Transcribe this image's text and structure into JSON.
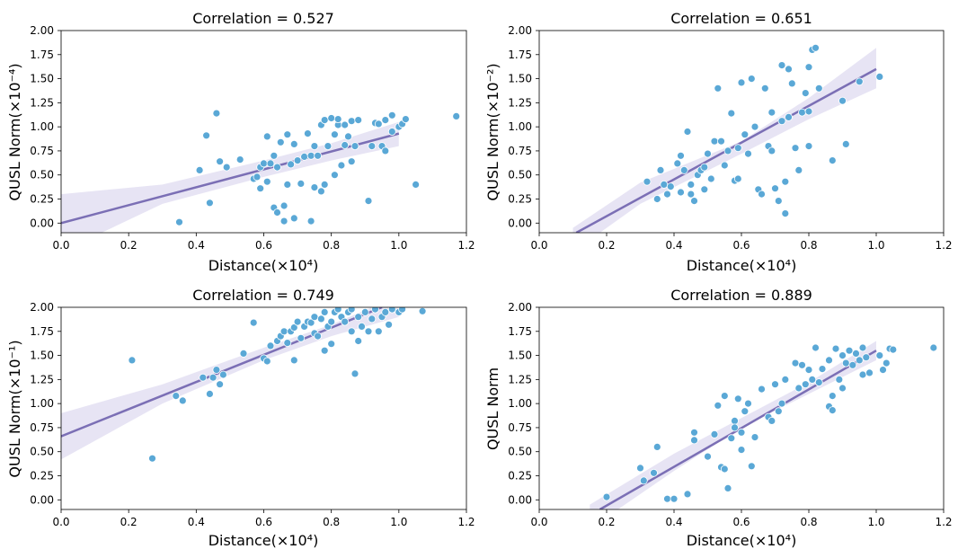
{
  "chart_data": [
    {
      "type": "scatter",
      "title": "Correlation = 0.527",
      "xlabel": "Distance(×10⁴)",
      "ylabel": "QUSL Norm(×10⁻⁴)",
      "xlim": [
        0,
        1.2
      ],
      "ylim": [
        -0.1,
        2.0
      ],
      "xticks": [
        "0.0",
        "0.2",
        "0.4",
        "0.6",
        "0.8",
        "1.0",
        "1.2"
      ],
      "yticks": [
        "0.00",
        "0.25",
        "0.50",
        "0.75",
        "1.00",
        "1.25",
        "1.50",
        "1.75",
        "2.00"
      ],
      "point_color": "#5aa8d6",
      "line_color": "#7b6fb5",
      "band_color": "#ddd8f0",
      "fit": {
        "x": [
          0.0,
          1.0
        ],
        "y": [
          0.0,
          0.93
        ]
      },
      "band": {
        "x": [
          0.0,
          0.3,
          0.6,
          0.8,
          1.0
        ],
        "lower": [
          -0.3,
          0.2,
          0.48,
          0.65,
          0.8
        ],
        "upper": [
          0.3,
          0.4,
          0.65,
          0.83,
          1.05
        ]
      },
      "points": [
        [
          0.35,
          0.01
        ],
        [
          0.41,
          0.55
        ],
        [
          0.43,
          0.91
        ],
        [
          0.44,
          0.21
        ],
        [
          0.46,
          1.14
        ],
        [
          0.47,
          0.64
        ],
        [
          0.49,
          0.58
        ],
        [
          0.53,
          0.66
        ],
        [
          0.57,
          0.46
        ],
        [
          0.58,
          0.48
        ],
        [
          0.59,
          0.36
        ],
        [
          0.59,
          0.58
        ],
        [
          0.6,
          0.62
        ],
        [
          0.61,
          0.43
        ],
        [
          0.61,
          0.9
        ],
        [
          0.62,
          0.62
        ],
        [
          0.63,
          0.16
        ],
        [
          0.63,
          0.7
        ],
        [
          0.64,
          0.11
        ],
        [
          0.64,
          0.58
        ],
        [
          0.65,
          0.84
        ],
        [
          0.66,
          0.02
        ],
        [
          0.66,
          0.18
        ],
        [
          0.67,
          0.4
        ],
        [
          0.67,
          0.92
        ],
        [
          0.68,
          0.61
        ],
        [
          0.69,
          0.05
        ],
        [
          0.69,
          0.82
        ],
        [
          0.7,
          0.65
        ],
        [
          0.71,
          0.41
        ],
        [
          0.72,
          0.69
        ],
        [
          0.73,
          0.93
        ],
        [
          0.74,
          0.02
        ],
        [
          0.74,
          0.7
        ],
        [
          0.75,
          0.37
        ],
        [
          0.75,
          0.8
        ],
        [
          0.76,
          0.7
        ],
        [
          0.77,
          0.33
        ],
        [
          0.77,
          1.02
        ],
        [
          0.78,
          0.4
        ],
        [
          0.78,
          1.07
        ],
        [
          0.79,
          0.8
        ],
        [
          0.8,
          1.09
        ],
        [
          0.81,
          0.5
        ],
        [
          0.81,
          0.92
        ],
        [
          0.82,
          1.02
        ],
        [
          0.82,
          1.08
        ],
        [
          0.83,
          0.6
        ],
        [
          0.84,
          0.81
        ],
        [
          0.84,
          1.02
        ],
        [
          0.85,
          0.9
        ],
        [
          0.86,
          0.64
        ],
        [
          0.86,
          1.06
        ],
        [
          0.87,
          0.8
        ],
        [
          0.88,
          1.07
        ],
        [
          0.91,
          0.23
        ],
        [
          0.92,
          0.8
        ],
        [
          0.93,
          1.04
        ],
        [
          0.94,
          1.03
        ],
        [
          0.95,
          0.8
        ],
        [
          0.96,
          0.75
        ],
        [
          0.96,
          1.07
        ],
        [
          0.98,
          0.95
        ],
        [
          0.98,
          1.12
        ],
        [
          1.0,
          1.0
        ],
        [
          1.01,
          1.03
        ],
        [
          1.02,
          1.08
        ],
        [
          1.05,
          0.4
        ],
        [
          1.17,
          1.11
        ]
      ]
    },
    {
      "type": "scatter",
      "title": "Correlation = 0.651",
      "xlabel": "Distance(×10⁴)",
      "ylabel": "QUSL Norm(×10⁻²)",
      "xlim": [
        0,
        1.2
      ],
      "ylim": [
        -0.1,
        2.0
      ],
      "xticks": [
        "0.0",
        "0.2",
        "0.4",
        "0.6",
        "0.8",
        "1.0",
        "1.2"
      ],
      "yticks": [
        "0.00",
        "0.25",
        "0.50",
        "0.75",
        "1.00",
        "1.25",
        "1.50",
        "1.75",
        "2.00"
      ],
      "point_color": "#5aa8d6",
      "line_color": "#7b6fb5",
      "band_color": "#ddd8f0",
      "fit": {
        "x": [
          0.11,
          1.0
        ],
        "y": [
          -0.1,
          1.6
        ]
      },
      "band": {
        "x": [
          0.1,
          0.3,
          0.6,
          0.8,
          1.0
        ],
        "lower": [
          -0.3,
          0.2,
          0.72,
          1.08,
          1.4
        ],
        "upper": [
          -0.05,
          0.42,
          0.85,
          1.3,
          1.82
        ]
      },
      "points": [
        [
          0.32,
          0.43
        ],
        [
          0.35,
          0.25
        ],
        [
          0.36,
          0.55
        ],
        [
          0.37,
          0.4
        ],
        [
          0.38,
          0.3
        ],
        [
          0.39,
          0.38
        ],
        [
          0.41,
          0.62
        ],
        [
          0.42,
          0.7
        ],
        [
          0.42,
          0.32
        ],
        [
          0.43,
          0.55
        ],
        [
          0.44,
          0.95
        ],
        [
          0.45,
          0.3
        ],
        [
          0.45,
          0.4
        ],
        [
          0.46,
          0.23
        ],
        [
          0.47,
          0.5
        ],
        [
          0.48,
          0.55
        ],
        [
          0.49,
          0.58
        ],
        [
          0.49,
          0.35
        ],
        [
          0.5,
          0.72
        ],
        [
          0.51,
          0.46
        ],
        [
          0.52,
          0.85
        ],
        [
          0.53,
          1.4
        ],
        [
          0.54,
          0.85
        ],
        [
          0.55,
          0.6
        ],
        [
          0.56,
          0.75
        ],
        [
          0.57,
          1.14
        ],
        [
          0.58,
          0.44
        ],
        [
          0.59,
          0.46
        ],
        [
          0.59,
          0.78
        ],
        [
          0.6,
          1.46
        ],
        [
          0.61,
          0.92
        ],
        [
          0.62,
          0.72
        ],
        [
          0.63,
          1.5
        ],
        [
          0.64,
          1.0
        ],
        [
          0.65,
          0.35
        ],
        [
          0.66,
          0.3
        ],
        [
          0.67,
          1.4
        ],
        [
          0.68,
          0.8
        ],
        [
          0.69,
          0.75
        ],
        [
          0.69,
          1.15
        ],
        [
          0.7,
          0.36
        ],
        [
          0.71,
          0.23
        ],
        [
          0.72,
          1.06
        ],
        [
          0.72,
          1.64
        ],
        [
          0.73,
          0.1
        ],
        [
          0.73,
          0.43
        ],
        [
          0.74,
          1.1
        ],
        [
          0.74,
          1.6
        ],
        [
          0.75,
          1.45
        ],
        [
          0.76,
          0.78
        ],
        [
          0.77,
          0.55
        ],
        [
          0.78,
          1.15
        ],
        [
          0.79,
          1.35
        ],
        [
          0.8,
          0.8
        ],
        [
          0.8,
          1.16
        ],
        [
          0.8,
          1.62
        ],
        [
          0.81,
          1.8
        ],
        [
          0.82,
          1.82
        ],
        [
          0.83,
          1.4
        ],
        [
          0.87,
          0.65
        ],
        [
          0.9,
          1.27
        ],
        [
          0.91,
          0.82
        ],
        [
          0.95,
          1.47
        ],
        [
          1.01,
          1.52
        ]
      ]
    },
    {
      "type": "scatter",
      "title": "Correlation = 0.749",
      "xlabel": "Distance(×10⁴)",
      "ylabel": "QUSL Norm(×10⁻¹)",
      "xlim": [
        0,
        1.2
      ],
      "ylim": [
        -0.1,
        2.0
      ],
      "xticks": [
        "0.0",
        "0.2",
        "0.4",
        "0.6",
        "0.8",
        "1.0",
        "1.2"
      ],
      "yticks": [
        "0.00",
        "0.25",
        "0.50",
        "0.75",
        "1.00",
        "1.25",
        "1.50",
        "1.75",
        "2.00"
      ],
      "point_color": "#5aa8d6",
      "line_color": "#7b6fb5",
      "band_color": "#ddd8f0",
      "fit": {
        "x": [
          0.0,
          0.95
        ],
        "y": [
          0.66,
          2.0
        ]
      },
      "band": {
        "x": [
          0.0,
          0.3,
          0.6,
          0.8,
          1.0
        ],
        "lower": [
          0.42,
          1.0,
          1.45,
          1.7,
          1.9
        ],
        "upper": [
          0.9,
          1.2,
          1.58,
          1.82,
          2.12
        ]
      },
      "points": [
        [
          0.21,
          1.45
        ],
        [
          0.27,
          0.43
        ],
        [
          0.34,
          1.08
        ],
        [
          0.36,
          1.03
        ],
        [
          0.42,
          1.27
        ],
        [
          0.44,
          1.1
        ],
        [
          0.45,
          1.27
        ],
        [
          0.46,
          1.35
        ],
        [
          0.47,
          1.2
        ],
        [
          0.48,
          1.3
        ],
        [
          0.54,
          1.52
        ],
        [
          0.57,
          1.84
        ],
        [
          0.6,
          1.47
        ],
        [
          0.61,
          1.44
        ],
        [
          0.62,
          1.6
        ],
        [
          0.64,
          1.65
        ],
        [
          0.65,
          1.7
        ],
        [
          0.66,
          1.75
        ],
        [
          0.67,
          1.63
        ],
        [
          0.68,
          1.75
        ],
        [
          0.69,
          1.45
        ],
        [
          0.69,
          1.79
        ],
        [
          0.7,
          1.85
        ],
        [
          0.71,
          1.68
        ],
        [
          0.72,
          1.8
        ],
        [
          0.73,
          1.85
        ],
        [
          0.74,
          1.84
        ],
        [
          0.75,
          1.73
        ],
        [
          0.75,
          1.9
        ],
        [
          0.76,
          1.7
        ],
        [
          0.77,
          1.88
        ],
        [
          0.78,
          1.55
        ],
        [
          0.78,
          1.95
        ],
        [
          0.79,
          1.8
        ],
        [
          0.8,
          1.62
        ],
        [
          0.8,
          1.85
        ],
        [
          0.81,
          1.95
        ],
        [
          0.82,
          1.98
        ],
        [
          0.83,
          1.9
        ],
        [
          0.84,
          1.85
        ],
        [
          0.85,
          1.95
        ],
        [
          0.86,
          1.75
        ],
        [
          0.86,
          1.98
        ],
        [
          0.87,
          1.31
        ],
        [
          0.88,
          1.65
        ],
        [
          0.88,
          1.9
        ],
        [
          0.89,
          1.8
        ],
        [
          0.9,
          1.95
        ],
        [
          0.91,
          1.75
        ],
        [
          0.92,
          1.88
        ],
        [
          0.93,
          1.98
        ],
        [
          0.94,
          1.75
        ],
        [
          0.95,
          1.9
        ],
        [
          0.96,
          1.95
        ],
        [
          0.97,
          1.82
        ],
        [
          0.98,
          1.98
        ],
        [
          1.0,
          1.95
        ],
        [
          1.01,
          1.98
        ],
        [
          1.07,
          1.96
        ]
      ]
    },
    {
      "type": "scatter",
      "title": "Correlation = 0.889",
      "xlabel": "Distance(×10⁴)",
      "ylabel": "QUSL Norm",
      "xlim": [
        0,
        1.2
      ],
      "ylim": [
        -0.1,
        2.0
      ],
      "xticks": [
        "0.0",
        "0.2",
        "0.4",
        "0.6",
        "0.8",
        "1.0",
        "1.2"
      ],
      "yticks": [
        "0.00",
        "0.25",
        "0.50",
        "0.75",
        "1.00",
        "1.25",
        "1.50",
        "1.75",
        "2.00"
      ],
      "point_color": "#5aa8d6",
      "line_color": "#7b6fb5",
      "band_color": "#ddd8f0",
      "fit": {
        "x": [
          0.18,
          1.0
        ],
        "y": [
          -0.1,
          1.55
        ]
      },
      "band": {
        "x": [
          0.15,
          0.4,
          0.6,
          0.8,
          1.0
        ],
        "lower": [
          -0.3,
          0.3,
          0.75,
          1.1,
          1.45
        ],
        "upper": [
          -0.05,
          0.48,
          0.85,
          1.22,
          1.65
        ]
      },
      "points": [
        [
          0.2,
          0.03
        ],
        [
          0.3,
          0.33
        ],
        [
          0.31,
          0.2
        ],
        [
          0.34,
          0.28
        ],
        [
          0.35,
          0.55
        ],
        [
          0.38,
          0.01
        ],
        [
          0.4,
          0.01
        ],
        [
          0.44,
          0.06
        ],
        [
          0.46,
          0.7
        ],
        [
          0.46,
          0.62
        ],
        [
          0.5,
          0.45
        ],
        [
          0.52,
          0.68
        ],
        [
          0.53,
          0.98
        ],
        [
          0.54,
          0.34
        ],
        [
          0.55,
          0.32
        ],
        [
          0.55,
          1.08
        ],
        [
          0.56,
          0.12
        ],
        [
          0.57,
          0.64
        ],
        [
          0.58,
          0.82
        ],
        [
          0.58,
          0.75
        ],
        [
          0.59,
          1.05
        ],
        [
          0.6,
          0.7
        ],
        [
          0.6,
          0.52
        ],
        [
          0.61,
          0.92
        ],
        [
          0.62,
          1.0
        ],
        [
          0.63,
          0.35
        ],
        [
          0.64,
          0.65
        ],
        [
          0.66,
          1.15
        ],
        [
          0.68,
          0.86
        ],
        [
          0.69,
          0.82
        ],
        [
          0.7,
          1.2
        ],
        [
          0.71,
          0.92
        ],
        [
          0.72,
          1.0
        ],
        [
          0.73,
          1.25
        ],
        [
          0.76,
          1.42
        ],
        [
          0.77,
          1.16
        ],
        [
          0.78,
          1.4
        ],
        [
          0.79,
          1.2
        ],
        [
          0.8,
          1.35
        ],
        [
          0.81,
          1.25
        ],
        [
          0.82,
          1.58
        ],
        [
          0.83,
          1.22
        ],
        [
          0.84,
          1.36
        ],
        [
          0.86,
          1.45
        ],
        [
          0.86,
          0.97
        ],
        [
          0.87,
          0.93
        ],
        [
          0.87,
          1.08
        ],
        [
          0.88,
          1.57
        ],
        [
          0.89,
          1.25
        ],
        [
          0.9,
          1.16
        ],
        [
          0.9,
          1.5
        ],
        [
          0.91,
          1.42
        ],
        [
          0.92,
          1.55
        ],
        [
          0.93,
          1.4
        ],
        [
          0.94,
          1.52
        ],
        [
          0.95,
          1.45
        ],
        [
          0.96,
          1.3
        ],
        [
          0.96,
          1.58
        ],
        [
          0.97,
          1.48
        ],
        [
          0.98,
          1.32
        ],
        [
          1.01,
          1.5
        ],
        [
          1.02,
          1.35
        ],
        [
          1.03,
          1.42
        ],
        [
          1.04,
          1.57
        ],
        [
          1.05,
          1.56
        ],
        [
          1.17,
          1.58
        ]
      ]
    }
  ]
}
